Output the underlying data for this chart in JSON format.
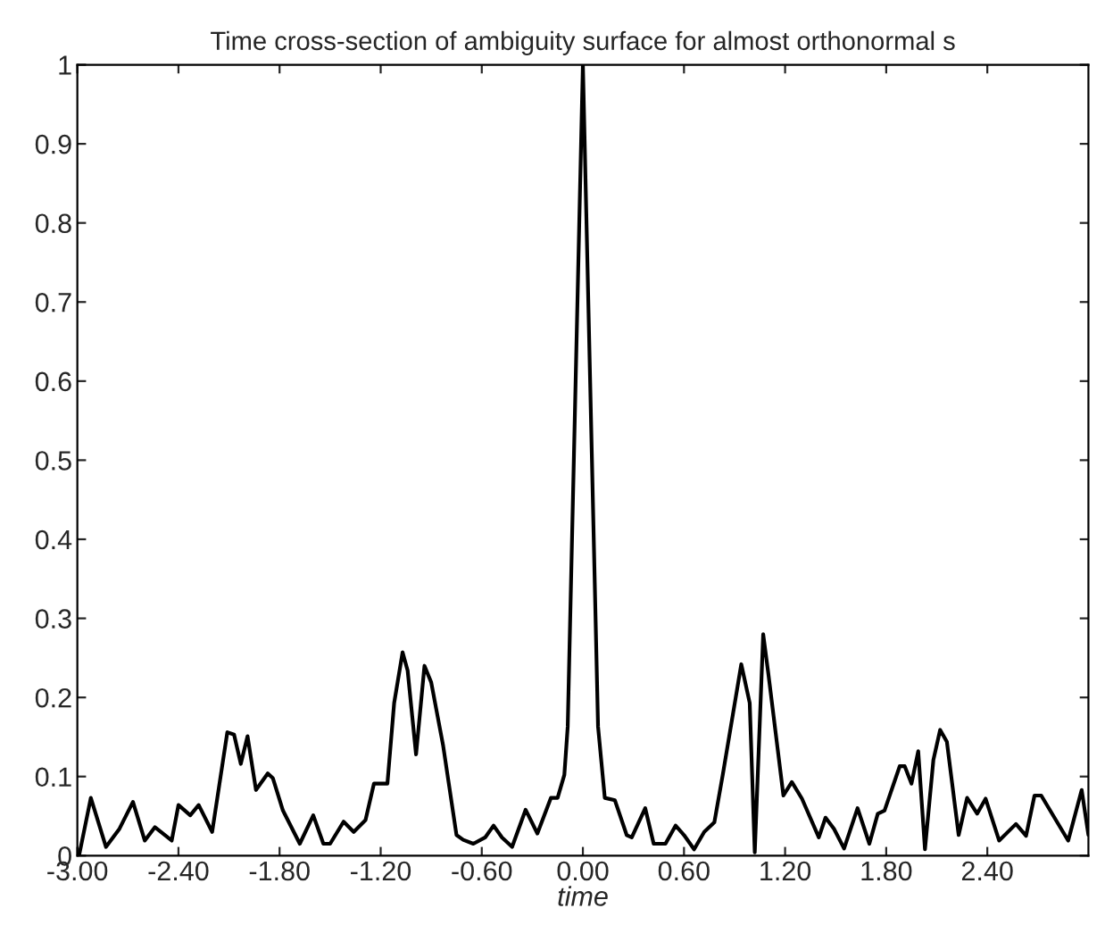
{
  "chart_data": {
    "type": "line",
    "title": "Time cross-section of ambiguity surface for almost orthonormal s",
    "xlabel": "time",
    "xlim": [
      -3,
      3
    ],
    "ylim": [
      0,
      1
    ],
    "xticks": [
      {
        "value": -3,
        "label": "-3.00"
      },
      {
        "value": -2.4,
        "label": "-2.40"
      },
      {
        "value": -1.8,
        "label": "-1.80"
      },
      {
        "value": -1.2,
        "label": "-1.20"
      },
      {
        "value": -0.6,
        "label": "-0.60"
      },
      {
        "value": 0,
        "label": "0.00"
      },
      {
        "value": 0.6,
        "label": "0.60"
      },
      {
        "value": 1.2,
        "label": "1.20"
      },
      {
        "value": 1.8,
        "label": "1.80"
      },
      {
        "value": 2.4,
        "label": "2.40"
      }
    ],
    "yticks": [
      0,
      0.1,
      0.2,
      0.3,
      0.4,
      0.5,
      0.6,
      0.7,
      0.8,
      0.9,
      1
    ],
    "grid": false,
    "legend": false,
    "series": [
      {
        "color": "#000000",
        "line_style": "solid",
        "marker": "none",
        "x": [
          -2.99,
          -2.92,
          -2.83,
          -2.75,
          -2.67,
          -2.6,
          -2.54,
          -2.44,
          -2.4,
          -2.33,
          -2.28,
          -2.2,
          -2.11,
          -2.07,
          -2.03,
          -1.99,
          -1.94,
          -1.87,
          -1.84,
          -1.78,
          -1.68,
          -1.6,
          -1.54,
          -1.5,
          -1.42,
          -1.36,
          -1.29,
          -1.24,
          -1.16,
          -1.12,
          -1.07,
          -1.04,
          -0.99,
          -0.94,
          -0.9,
          -0.83,
          -0.75,
          -0.71,
          -0.65,
          -0.58,
          -0.53,
          -0.48,
          -0.42,
          -0.34,
          -0.27,
          -0.19,
          -0.15,
          -0.11,
          -0.09,
          0,
          0.09,
          0.13,
          0.19,
          0.26,
          0.29,
          0.37,
          0.42,
          0.49,
          0.55,
          0.6,
          0.66,
          0.72,
          0.78,
          0.83,
          0.94,
          0.99,
          1.02,
          1.07,
          1.1,
          1.19,
          1.24,
          1.3,
          1.4,
          1.44,
          1.49,
          1.55,
          1.63,
          1.7,
          1.75,
          1.79,
          1.88,
          1.91,
          1.95,
          1.99,
          2.03,
          2.08,
          2.12,
          2.16,
          2.23,
          2.28,
          2.34,
          2.39,
          2.47,
          2.57,
          2.63,
          2.68,
          2.72,
          2.88,
          2.96,
          3.0
        ],
        "values": [
          0,
          0.073,
          0.011,
          0.034,
          0.068,
          0.019,
          0.036,
          0.019,
          0.064,
          0.051,
          0.064,
          0.03,
          0.156,
          0.153,
          0.116,
          0.151,
          0.083,
          0.104,
          0.098,
          0.057,
          0.015,
          0.051,
          0.015,
          0.015,
          0.043,
          0.03,
          0.045,
          0.091,
          0.091,
          0.193,
          0.257,
          0.234,
          0.128,
          0.24,
          0.219,
          0.14,
          0.026,
          0.02,
          0.015,
          0.023,
          0.038,
          0.023,
          0.011,
          0.058,
          0.028,
          0.073,
          0.073,
          0.102,
          0.163,
          1.0,
          0.163,
          0.073,
          0.07,
          0.026,
          0.023,
          0.06,
          0.015,
          0.015,
          0.038,
          0.026,
          0.008,
          0.03,
          0.042,
          0.102,
          0.242,
          0.193,
          0.004,
          0.28,
          0.231,
          0.076,
          0.093,
          0.072,
          0.023,
          0.048,
          0.034,
          0.009,
          0.06,
          0.015,
          0.053,
          0.057,
          0.113,
          0.113,
          0.091,
          0.132,
          0.008,
          0.121,
          0.159,
          0.144,
          0.026,
          0.073,
          0.053,
          0.072,
          0.019,
          0.04,
          0.025,
          0.076,
          0.076,
          0.019,
          0.083,
          0.026
        ]
      }
    ]
  }
}
